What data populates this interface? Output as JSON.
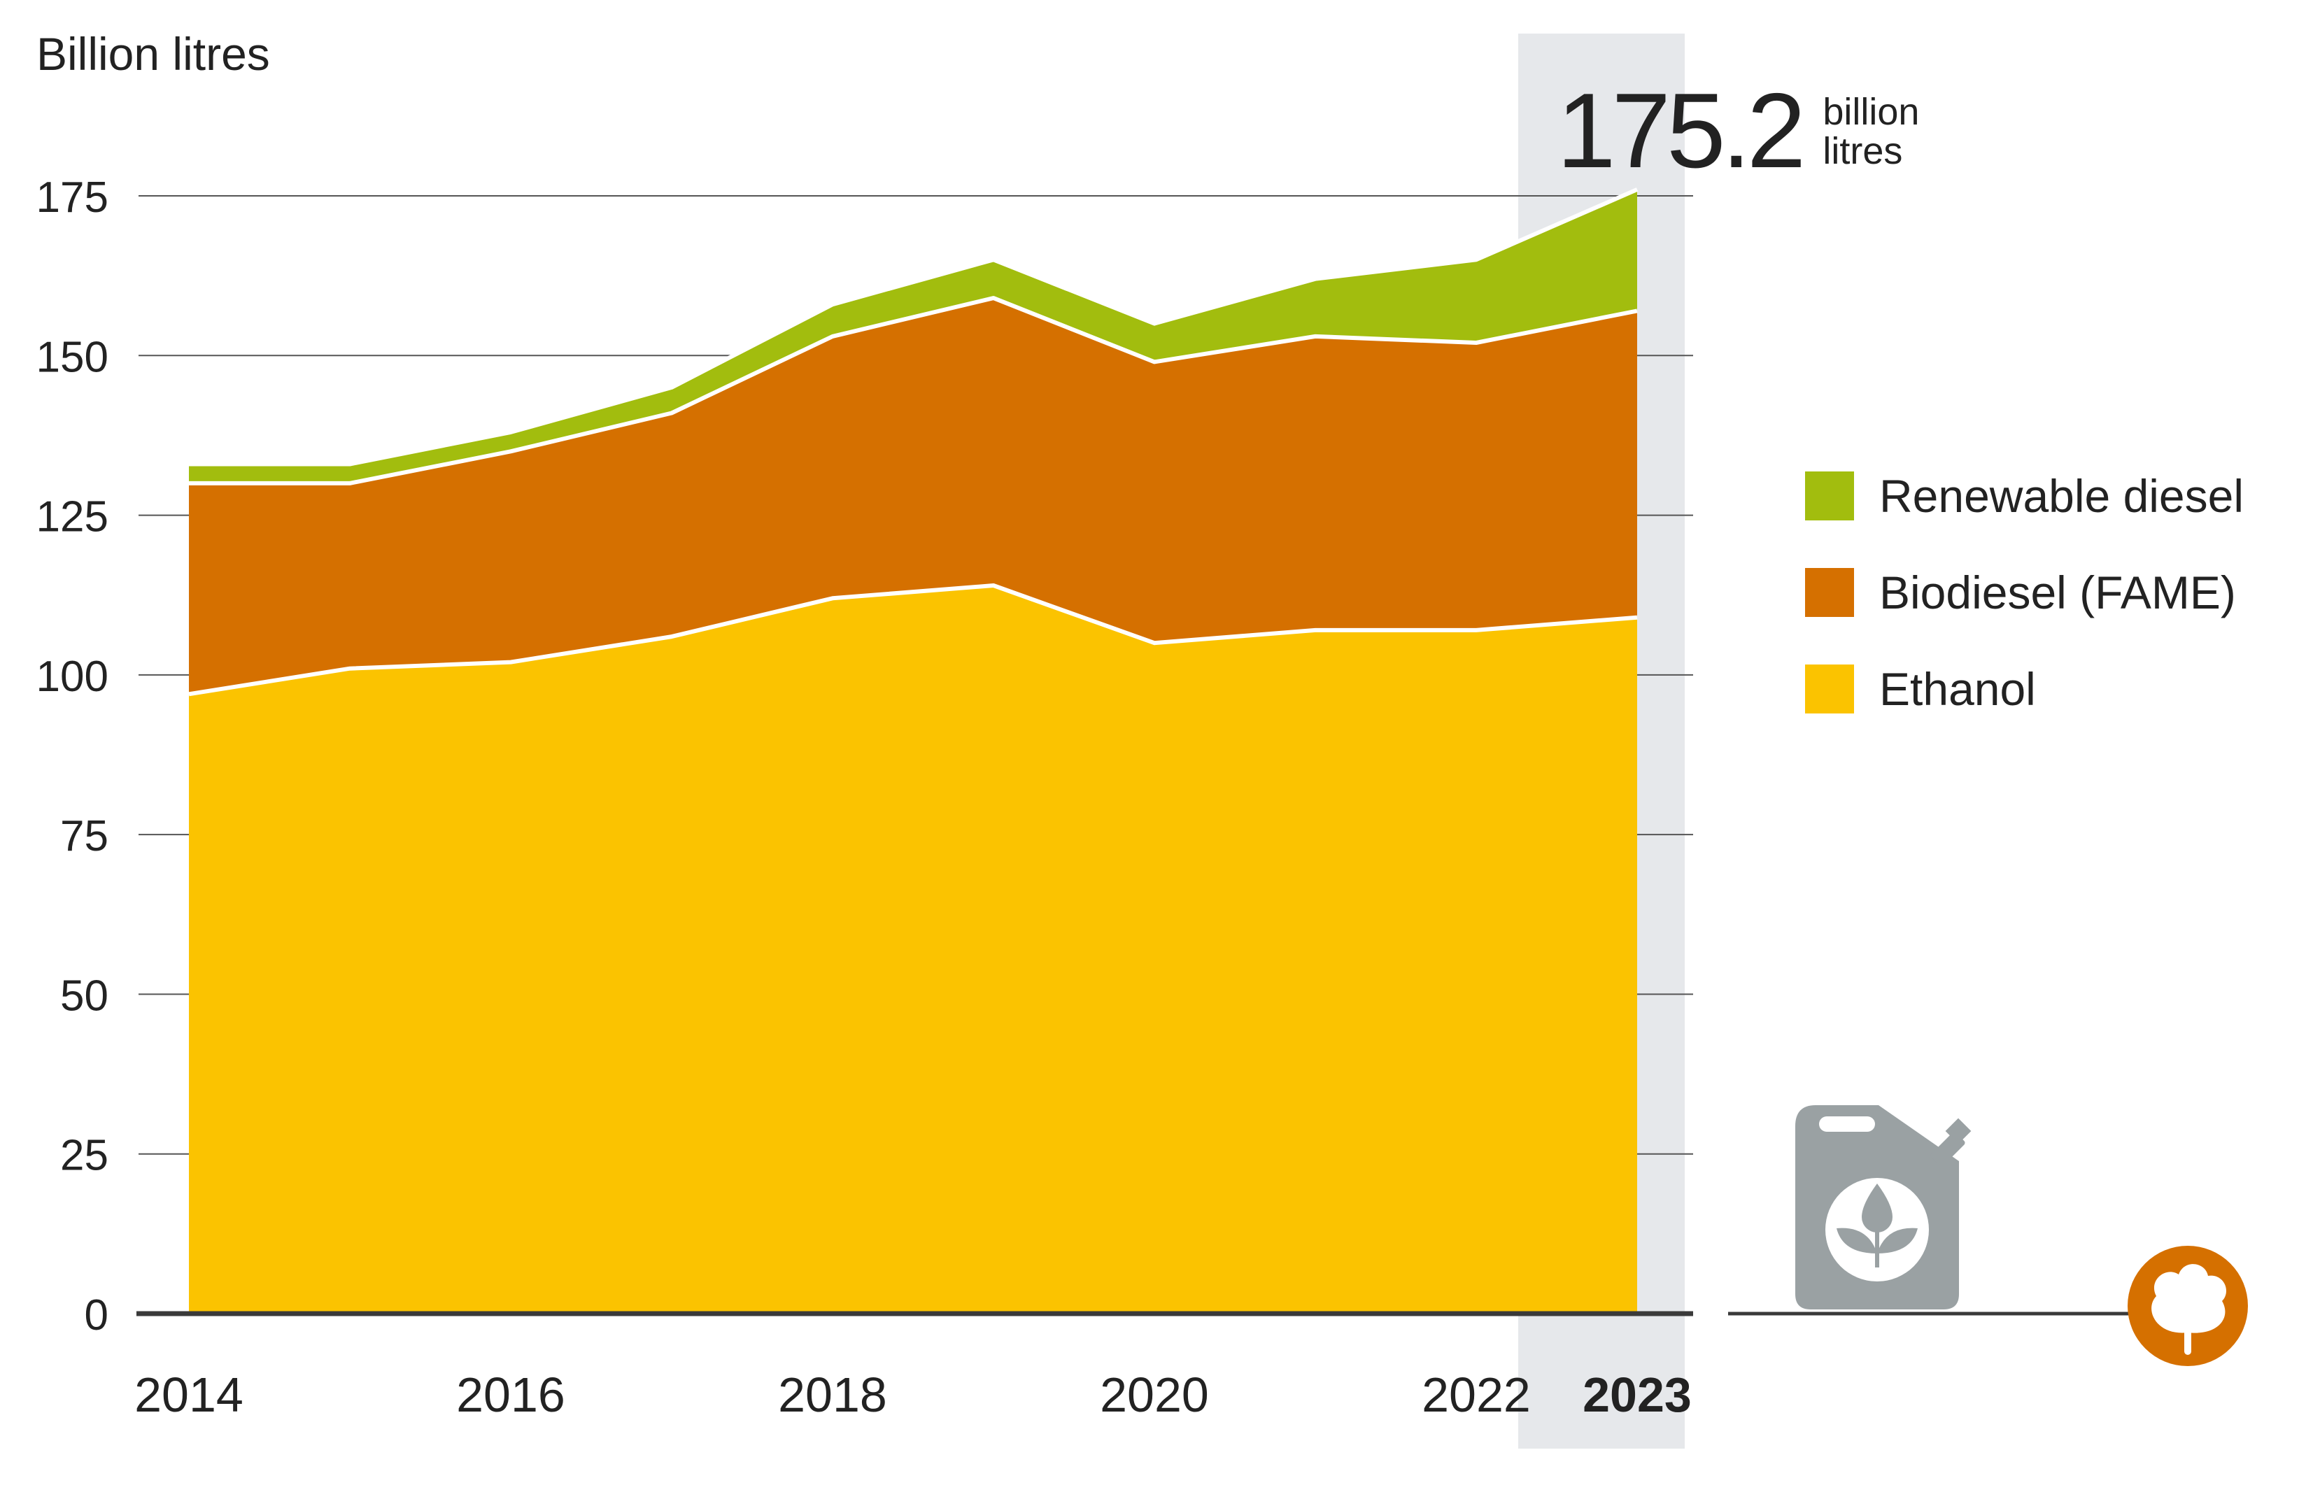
{
  "chart_data": {
    "type": "area",
    "stacked": true,
    "ylabel": "Billion litres",
    "x": [
      2014,
      2015,
      2016,
      2017,
      2018,
      2019,
      2020,
      2021,
      2022,
      2023
    ],
    "xtick_labels": [
      "2014",
      "2016",
      "2018",
      "2020",
      "2022",
      "2023"
    ],
    "xtick_values": [
      2014,
      2016,
      2018,
      2020,
      2022,
      2023
    ],
    "highlighted_x": "2023",
    "ylim": [
      0,
      175
    ],
    "yticks": [
      0,
      25,
      50,
      75,
      100,
      125,
      150,
      175
    ],
    "series": [
      {
        "name": "Ethanol",
        "values": [
          97,
          101,
          102,
          106,
          112,
          114,
          105,
          107,
          107,
          109
        ]
      },
      {
        "name": "Biodiesel (FAME)",
        "values": [
          33,
          29,
          33,
          35,
          41,
          45,
          44,
          46,
          45,
          48
        ]
      },
      {
        "name": "Renewable diesel",
        "values": [
          3,
          3,
          3,
          4,
          5,
          6,
          6,
          9,
          13,
          19
        ]
      }
    ],
    "colors": {
      "Ethanol": "#FBC300",
      "Biodiesel (FAME)": "#D57000",
      "Renewable diesel": "#A2BD0E"
    },
    "legend_position": "right",
    "legend_order": [
      "Renewable diesel",
      "Biodiesel (FAME)",
      "Ethanol"
    ],
    "annotation": {
      "value": "175.2",
      "unit_line1": "billion",
      "unit_line2": "litres"
    }
  },
  "style": {
    "highlight_band": "#E6E8EB",
    "axis": "#3A3A3A",
    "grid": "#555555",
    "icon_grey": "#9AA1A3",
    "icon_orange": "#D57000"
  }
}
